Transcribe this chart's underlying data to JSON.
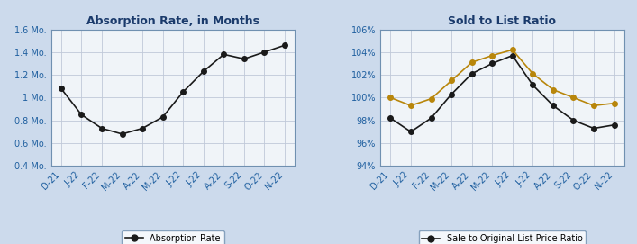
{
  "chart1_title": "Absorption Rate, in Months",
  "chart2_title": "Sold to List Ratio",
  "x_labels": [
    "D-21",
    "J-22",
    "F-22",
    "M-22",
    "A-22",
    "M-22",
    "J-22",
    "J-22",
    "A-22",
    "S-22",
    "O-22",
    "N-22"
  ],
  "absorption_rate": [
    1.08,
    0.85,
    0.73,
    0.68,
    0.73,
    0.83,
    1.05,
    1.23,
    1.38,
    1.34,
    1.4,
    1.46
  ],
  "sale_to_original": [
    98.2,
    97.0,
    98.2,
    100.3,
    102.1,
    103.0,
    103.7,
    101.1,
    99.3,
    98.0,
    97.3,
    97.6
  ],
  "sale_to_list": [
    100.0,
    99.3,
    99.9,
    101.5,
    103.1,
    103.7,
    104.2,
    102.1,
    100.7,
    100.0,
    99.3,
    99.5
  ],
  "absorption_ylim": [
    0.4,
    1.6
  ],
  "absorption_yticks": [
    0.4,
    0.6,
    0.8,
    1.0,
    1.2,
    1.4,
    1.6
  ],
  "absorption_ytick_labels": [
    "0.4 Mo.",
    "0.6 Mo.",
    "0.8 Mo.",
    "1 Mo.",
    "1.2 Mo.",
    "1.4 Mo.",
    "1.6 Mo."
  ],
  "ratio_ylim": [
    94,
    106
  ],
  "ratio_yticks": [
    94,
    96,
    98,
    100,
    102,
    104,
    106
  ],
  "ratio_ytick_labels": [
    "94%",
    "96%",
    "98%",
    "100%",
    "102%",
    "104%",
    "106%"
  ],
  "line_color_black": "#1a1a1a",
  "line_color_tan": "#b8860b",
  "bg_color": "#dce9f5",
  "plot_bg_color": "#f0f4f8",
  "grid_color": "#c0c8d8",
  "title_color": "#1a3a6b",
  "axis_label_color": "#2060a0",
  "legend_border_color": "#7090b0",
  "outer_bg": "#ccdaec"
}
